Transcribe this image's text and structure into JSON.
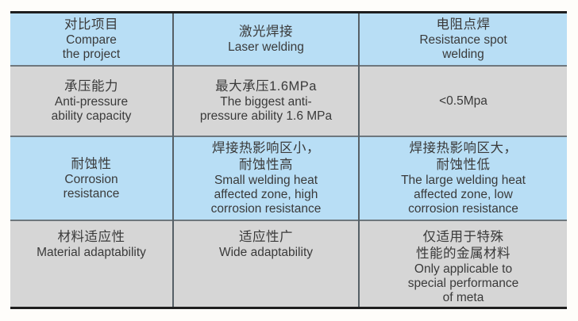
{
  "table": {
    "title_semantic": "laser-welding-vs-resistance-spot-welding-comparison",
    "colors": {
      "header_and_alt_row_blue": "#b8def5",
      "alt_row_gray": "#d6d6d6",
      "outer_border": "#1e1e1e",
      "column_divider": "#566066",
      "row_divider": "#6e777d",
      "text": "#3a3a3a",
      "page_background": "#fefdfa"
    },
    "header": {
      "compare": {
        "zh": "对比项目",
        "en": "Compare\nthe project"
      },
      "laser": {
        "zh": "激光焊接",
        "en": "Laser welding"
      },
      "resistance": {
        "zh": "电阻点焊",
        "en": "Resistance spot\nwelding"
      }
    },
    "rows": [
      {
        "cells": [
          {
            "zh": "承压能力",
            "en": "Anti-pressure\nability capacity"
          },
          {
            "zh": "最大承压1.6MPa",
            "en": "The biggest anti-\npressure ability 1.6 MPa"
          },
          {
            "zh": "",
            "en": "<0.5Mpa"
          }
        ]
      },
      {
        "cells": [
          {
            "zh": "耐蚀性",
            "en": "Corrosion\nresistance"
          },
          {
            "zh": "焊接热影响区小，\n耐蚀性高",
            "en": "Small welding heat\naffected zone, high\ncorrosion resistance"
          },
          {
            "zh": "焊接热影响区大，\n耐蚀性低",
            "en": "The large welding heat\naffected zone, low\ncorrosion resistance"
          }
        ]
      },
      {
        "cells": [
          {
            "zh": "材料适应性",
            "en": "Material adaptability"
          },
          {
            "zh": "适应性广",
            "en": "Wide adaptability"
          },
          {
            "zh": "仅适用于特殊\n性能的金属材料",
            "en": "Only applicable to\nspecial performance\nof meta"
          }
        ]
      }
    ]
  }
}
